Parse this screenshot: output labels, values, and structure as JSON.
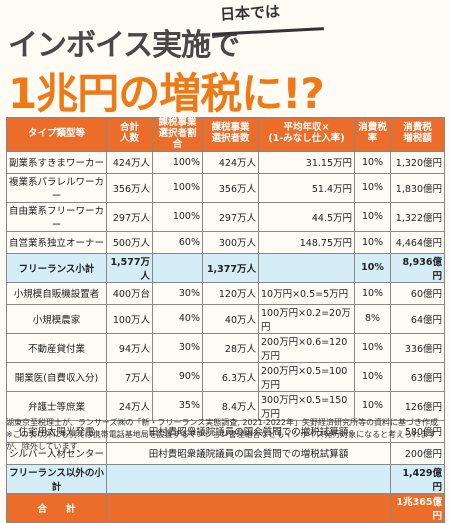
{
  "headline": {
    "line1": "インボイス実施で",
    "line2": "日本では",
    "line3": "1兆円の増税に!?"
  },
  "table": {
    "headers": [
      "タイプ類型等",
      "合計\n人数",
      "課税事業\n選択者割合",
      "課税事業\n選択者数",
      "平均年収×\n(1-みなし仕入率)",
      "消費税\n率",
      "消費税\n増税額"
    ],
    "rows": [
      [
        "副業系すきまワーカー",
        "424万人",
        "100%",
        "424万人",
        "31.15万円",
        "10%",
        "1,320億円"
      ],
      [
        "複業系パラレルワーカー",
        "356万人",
        "100%",
        "356万人",
        "51.4万円",
        "10%",
        "1,830億円"
      ],
      [
        "自由業系フリーワーカー",
        "297万人",
        "100%",
        "297万人",
        "44.5万円",
        "10%",
        "1,322億円"
      ],
      [
        "自営業系独立オーナー",
        "500万人",
        "60%",
        "300万人",
        "148.75万円",
        "10%",
        "4,464億円"
      ]
    ],
    "subtotal1": [
      "フリーランス小計",
      "1,577万人",
      "",
      "1,377万人",
      "",
      "10%",
      "8,936億円"
    ],
    "rows2": [
      [
        "小規模自販機設置者",
        "400万台",
        "30%",
        "120万人",
        "10万円×0.5=5万円",
        "10%",
        "60億円"
      ],
      [
        "小規模農家",
        "100万人",
        "40%",
        "40万人",
        "100万円×0.2=20万円",
        "8%",
        "64億円"
      ],
      [
        "不動産貸付業",
        "94万人",
        "30%",
        "28万人",
        "200万円×0.6=120万円",
        "10%",
        "336億円"
      ],
      [
        "開業医(自費収入分)",
        "7万人",
        "90%",
        "6.3万人",
        "200万円×0.5=100万円",
        "10%",
        "63億円"
      ],
      [
        "弁護士等庶業",
        "24万人",
        "35%",
        "8.4万人",
        "300万円×0.5=150万円",
        "10%",
        "126億円"
      ]
    ],
    "rows3": [
      {
        "label": "住宅用太陽光発電",
        "note": "田村貴昭衆議院議員の国会質問での増税試算額",
        "amount": "580億円"
      },
      {
        "label": "シルバー人材センター",
        "note": "田村貴昭衆議院議員の国会質問での増税試算額",
        "amount": "200億円"
      }
    ],
    "subtotal2": {
      "label": "フリーランス以外の小計",
      "amount": "1,429億円"
    },
    "total": {
      "label": "合　　計",
      "amount": "1兆365億円"
    }
  },
  "notes": [
    "湖東京至税理士が、ランサーズ㈱の「新・フリーランス実態調査, 2021-2022年」矢野経済研究所等の資料に基づき作成",
    "※この表以外にも例えば携帯電話基地局を設置するマンション管理組合などもインボイス発行対象になると考えられますが、除外しています"
  ]
}
